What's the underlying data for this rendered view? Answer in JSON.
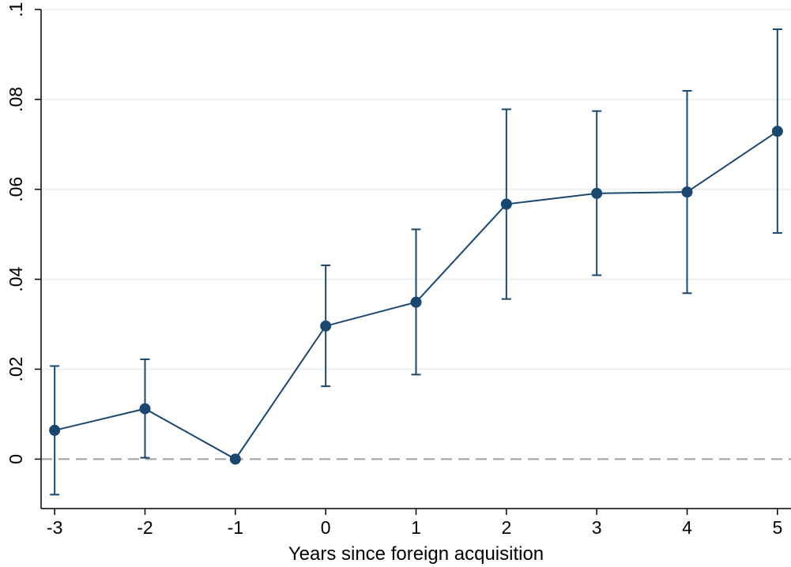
{
  "chart_data": {
    "type": "line",
    "title": "",
    "xlabel": "Years since foreign acquisition",
    "ylabel": "",
    "x": [
      -3,
      -2,
      -1,
      0,
      1,
      2,
      3,
      4,
      5
    ],
    "x_tick_labels": [
      "-3",
      "-2",
      "-1",
      "0",
      "1",
      "2",
      "3",
      "4",
      "5"
    ],
    "y_ticks": [
      0,
      0.02,
      0.04,
      0.06,
      0.08,
      0.1
    ],
    "y_tick_labels": [
      "0",
      ".02",
      ".04",
      ".06",
      ".08",
      ".1"
    ],
    "xlim": [
      -3.15,
      5.15
    ],
    "ylim": [
      -0.011,
      0.1
    ],
    "grid": true,
    "reference_line": {
      "y": 0,
      "style": "dashed"
    },
    "series": [
      {
        "values": [
          0.0064,
          0.0112,
          0.0,
          0.0296,
          0.0349,
          0.0567,
          0.0591,
          0.0594,
          0.0729
        ],
        "ci_lower": [
          -0.0079,
          0.0003,
          0.0,
          0.0162,
          0.0188,
          0.0356,
          0.0409,
          0.0369,
          0.0503
        ],
        "ci_upper": [
          0.0207,
          0.0222,
          0.0,
          0.0431,
          0.0511,
          0.0778,
          0.0774,
          0.0819,
          0.0956
        ]
      }
    ],
    "colors": {
      "series": "#1a476f",
      "grid": "#eaf2f3",
      "reference": "#a0a0a0",
      "axis": "#000000"
    }
  }
}
